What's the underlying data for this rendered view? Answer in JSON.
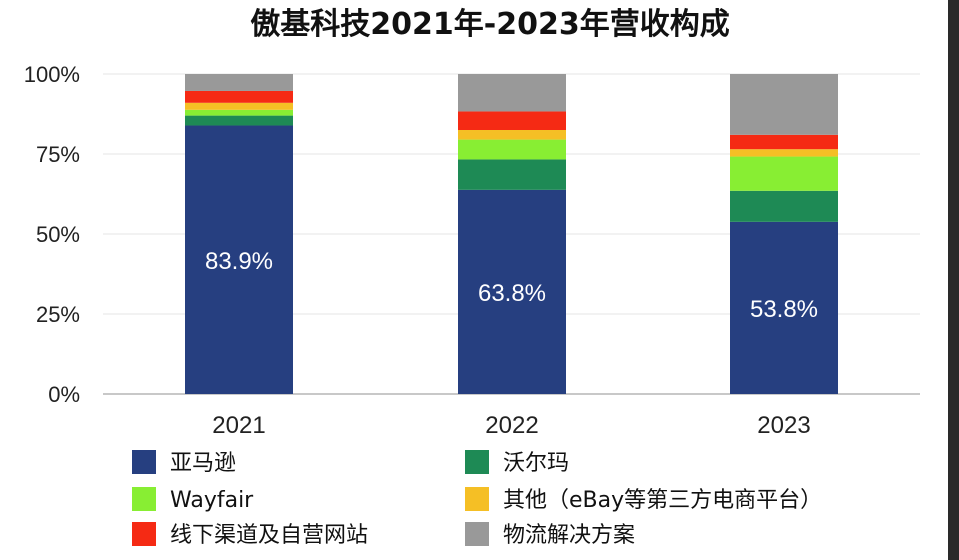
{
  "chart_data": {
    "type": "bar",
    "stacked": true,
    "title": "傲基科技2021年-2023年营收构成",
    "xlabel": "",
    "ylabel": "",
    "ylim": [
      0,
      100
    ],
    "ytick_values": [
      0,
      25,
      50,
      75,
      100
    ],
    "ytick_labels": [
      "0%",
      "25%",
      "50%",
      "75%",
      "100%"
    ],
    "categories": [
      "2021",
      "2022",
      "2023"
    ],
    "series": [
      {
        "name": "亚马逊",
        "color": "#263f80",
        "values": [
          83.9,
          63.8,
          53.8
        ]
      },
      {
        "name": "沃尔玛",
        "color": "#1e8a55",
        "values": [
          3.1,
          9.5,
          9.7
        ]
      },
      {
        "name": "Wayfair",
        "color": "#88ee33",
        "values": [
          1.8,
          6.2,
          10.7
        ]
      },
      {
        "name": "其他（eBay等第三方电商平台）",
        "color": "#f5bf25",
        "values": [
          2.2,
          3.0,
          2.3
        ]
      },
      {
        "name": "线下渠道及自营网站",
        "color": "#f52a14",
        "values": [
          3.7,
          5.8,
          4.5
        ]
      },
      {
        "name": "物流解决方案",
        "color": "#999999",
        "values": [
          5.3,
          11.7,
          19.0
        ]
      }
    ],
    "data_labels": [
      {
        "category": "2021",
        "series": "亚马逊",
        "text": "83.9%"
      },
      {
        "category": "2022",
        "series": "亚马逊",
        "text": "63.8%"
      },
      {
        "category": "2023",
        "series": "亚马逊",
        "text": "53.8%"
      }
    ],
    "grid": true,
    "legend_position": "bottom"
  }
}
